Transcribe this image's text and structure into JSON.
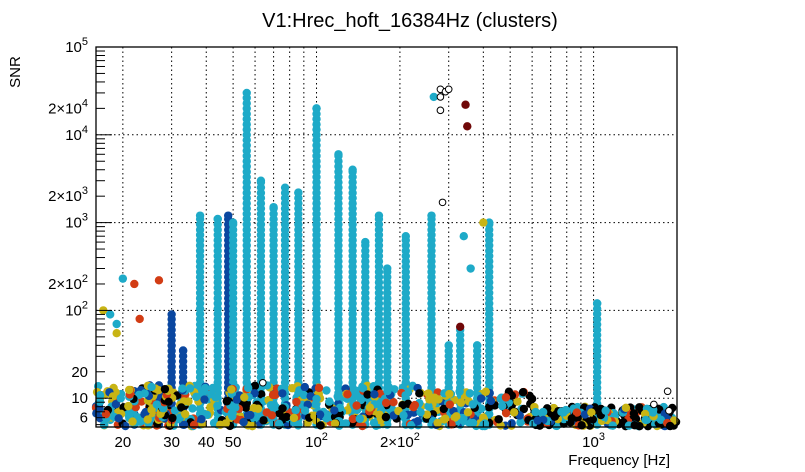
{
  "chart_data": {
    "type": "scatter",
    "title": "V1:Hrec_hoft_16384Hz (clusters)",
    "xlabel": "Frequency [Hz]",
    "ylabel": "SNR",
    "xscale": "log",
    "yscale": "log",
    "xlim": [
      16,
      2000
    ],
    "ylim": [
      4.7,
      100000
    ],
    "grid": true,
    "xticks": [
      {
        "v": 20,
        "l": "20"
      },
      {
        "v": 30,
        "l": "30"
      },
      {
        "v": 40,
        "l": "40"
      },
      {
        "v": 50,
        "l": "50"
      },
      {
        "v": 100,
        "l": "10",
        "sup": "2"
      },
      {
        "v": 200,
        "l": "2×10",
        "sup": "2"
      },
      {
        "v": 1000,
        "l": "10",
        "sup": "3"
      }
    ],
    "yticks": [
      {
        "v": 6,
        "l": "6"
      },
      {
        "v": 10,
        "l": "10"
      },
      {
        "v": 20,
        "l": "20"
      },
      {
        "v": 100,
        "l": "10",
        "sup": "2"
      },
      {
        "v": 200,
        "l": "2×10",
        "sup": "2"
      },
      {
        "v": 1000,
        "l": "10",
        "sup": "3"
      },
      {
        "v": 2000,
        "l": "2×10",
        "sup": "3"
      },
      {
        "v": 10000,
        "l": "10",
        "sup": "4"
      },
      {
        "v": 20000,
        "l": "2×10",
        "sup": "4"
      },
      {
        "v": 100000,
        "l": "10",
        "sup": "5"
      }
    ],
    "colors": {
      "cyan": "#1eaac8",
      "blue": "#0a47a0",
      "yellow": "#c8b414",
      "red": "#d23c14",
      "darkred": "#700808",
      "black": "#000000"
    },
    "columns": [
      {
        "f": 22,
        "top": 12,
        "c": "blue"
      },
      {
        "f": 25,
        "top": 14,
        "c": "blue"
      },
      {
        "f": 27,
        "top": 14,
        "c": "blue"
      },
      {
        "f": 30,
        "top": 90,
        "c": "blue"
      },
      {
        "f": 33,
        "top": 35,
        "c": "blue"
      },
      {
        "f": 38,
        "top": 1200,
        "c": "cyan"
      },
      {
        "f": 44,
        "top": 1100,
        "c": "cyan"
      },
      {
        "f": 48,
        "top": 1200,
        "c": "blue"
      },
      {
        "f": 50,
        "top": 1000,
        "c": "cyan"
      },
      {
        "f": 56,
        "top": 30000,
        "c": "cyan"
      },
      {
        "f": 63,
        "top": 3000,
        "c": "cyan"
      },
      {
        "f": 70,
        "top": 1500,
        "c": "cyan"
      },
      {
        "f": 77,
        "top": 2500,
        "c": "cyan"
      },
      {
        "f": 86,
        "top": 2200,
        "c": "cyan"
      },
      {
        "f": 100,
        "top": 20000,
        "c": "cyan"
      },
      {
        "f": 120,
        "top": 6000,
        "c": "cyan"
      },
      {
        "f": 135,
        "top": 4000,
        "c": "cyan"
      },
      {
        "f": 150,
        "top": 600,
        "c": "cyan"
      },
      {
        "f": 168,
        "top": 1200,
        "c": "cyan"
      },
      {
        "f": 180,
        "top": 300,
        "c": "cyan"
      },
      {
        "f": 210,
        "top": 700,
        "c": "cyan"
      },
      {
        "f": 260,
        "top": 1200,
        "c": "cyan"
      },
      {
        "f": 300,
        "top": 40,
        "c": "cyan"
      },
      {
        "f": 330,
        "top": 60,
        "c": "cyan"
      },
      {
        "f": 380,
        "top": 40,
        "c": "cyan"
      },
      {
        "f": 420,
        "top": 1000,
        "c": "cyan"
      },
      {
        "f": 1030,
        "top": 120,
        "c": "cyan"
      }
    ],
    "points": [
      {
        "f": 265,
        "s": 27000,
        "c": "cyan"
      },
      {
        "f": 280,
        "s": 33000,
        "c": "o"
      },
      {
        "f": 292,
        "s": 31000,
        "c": "o"
      },
      {
        "f": 300,
        "s": 33000,
        "c": "o"
      },
      {
        "f": 280,
        "s": 27000,
        "c": "o"
      },
      {
        "f": 280,
        "s": 19000,
        "c": "o"
      },
      {
        "f": 345,
        "s": 22000,
        "c": "darkred"
      },
      {
        "f": 350,
        "s": 12500,
        "c": "darkred"
      },
      {
        "f": 285,
        "s": 1700,
        "c": "o"
      },
      {
        "f": 400,
        "s": 1000,
        "c": "yellow"
      },
      {
        "f": 340,
        "s": 700,
        "c": "cyan"
      },
      {
        "f": 360,
        "s": 300,
        "c": "cyan"
      },
      {
        "f": 330,
        "s": 65,
        "c": "darkred"
      },
      {
        "f": 64,
        "s": 15,
        "c": "o"
      },
      {
        "f": 20,
        "s": 230,
        "c": "cyan"
      },
      {
        "f": 22,
        "s": 200,
        "c": "red"
      },
      {
        "f": 27,
        "s": 220,
        "c": "red"
      },
      {
        "f": 17,
        "s": 100,
        "c": "yellow"
      },
      {
        "f": 18,
        "s": 90,
        "c": "cyan"
      },
      {
        "f": 23,
        "s": 80,
        "c": "red"
      },
      {
        "f": 19,
        "s": 70,
        "c": "cyan"
      },
      {
        "f": 19,
        "s": 55,
        "c": "yellow"
      },
      {
        "f": 1850,
        "s": 12,
        "c": "o"
      },
      {
        "f": 1870,
        "s": 7.2,
        "c": "o"
      },
      {
        "f": 1650,
        "s": 8.5,
        "c": "o"
      }
    ]
  }
}
